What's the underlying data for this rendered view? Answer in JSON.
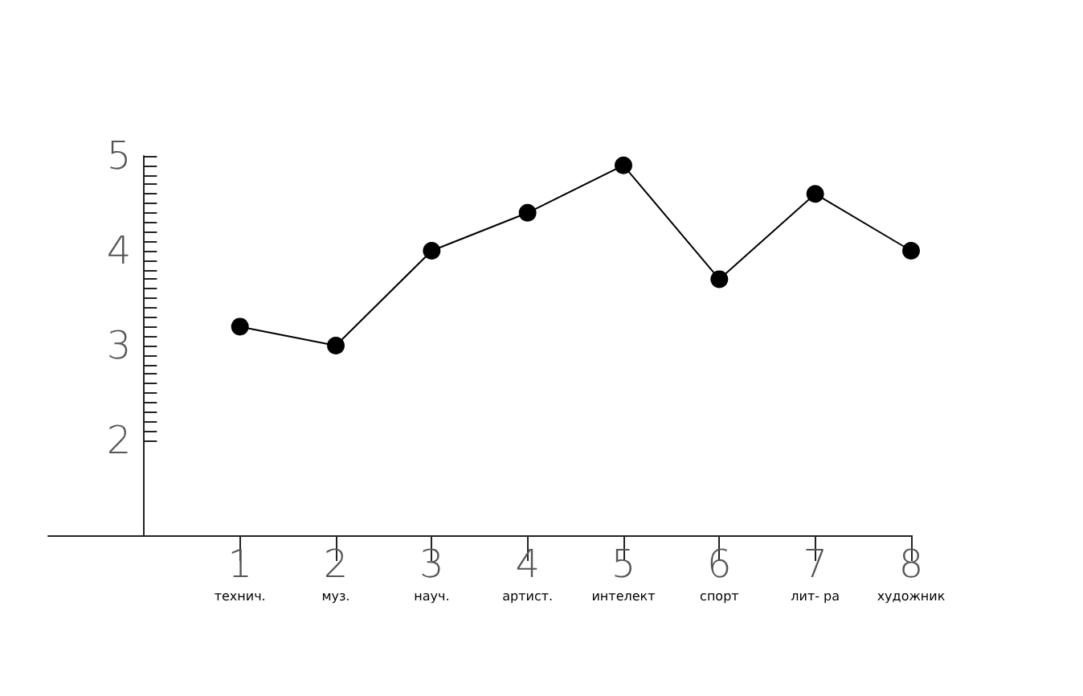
{
  "chart_data": {
    "type": "line",
    "x": [
      1,
      2,
      3,
      4,
      5,
      6,
      7,
      8
    ],
    "values": [
      3.2,
      3.0,
      4.0,
      4.4,
      4.9,
      3.7,
      4.6,
      4.0
    ],
    "color": "#000000",
    "marker": "circle",
    "line_style": "solid",
    "xlim": [
      -1,
      8
    ],
    "xticks": [
      {
        "value": 1,
        "label": "1\nтехнич."
      },
      {
        "value": 2,
        "label": "2\nмуз."
      },
      {
        "value": 3,
        "label": "3\nнауч."
      },
      {
        "value": 4,
        "label": "4\nартист."
      },
      {
        "value": 5,
        "label": "5\nинтелект"
      },
      {
        "value": 6,
        "label": "6\nспорт"
      },
      {
        "value": 7,
        "label": "7\nлит- ра"
      },
      {
        "value": 8,
        "label": "8\nхудожник"
      }
    ],
    "ylim": [
      1,
      5
    ],
    "yticks": [
      2,
      {
        "value": 2.1,
        "label": null
      },
      {
        "value": 2.2,
        "label": null
      },
      {
        "value": 2.3,
        "label": null
      },
      {
        "value": 2.4,
        "label": null
      },
      {
        "value": 2.5,
        "label": null
      },
      {
        "value": 2.6,
        "label": null
      },
      {
        "value": 2.7,
        "label": null
      },
      {
        "value": 2.8,
        "label": null
      },
      {
        "value": 2.9,
        "label": null
      },
      3,
      {
        "value": 3.1,
        "label": null
      },
      {
        "value": 3.2,
        "label": null
      },
      {
        "value": 3.3,
        "label": null
      },
      {
        "value": 3.4,
        "label": null
      },
      {
        "value": 3.5,
        "label": null
      },
      {
        "value": 3.6,
        "label": null
      },
      {
        "value": 3.7,
        "label": null
      },
      {
        "value": 3.8,
        "label": null
      },
      {
        "value": 3.9,
        "label": null
      },
      4,
      {
        "value": 4.1,
        "label": null
      },
      {
        "value": 4.2,
        "label": null
      },
      {
        "value": 4.3,
        "label": null
      },
      {
        "value": 4.4,
        "label": null
      },
      {
        "value": 4.5,
        "label": null
      },
      {
        "value": 4.6,
        "label": null
      },
      {
        "value": 4.7,
        "label": null
      },
      {
        "value": 4.8,
        "label": null
      },
      {
        "value": 4.9,
        "label": null
      },
      5
    ]
  }
}
